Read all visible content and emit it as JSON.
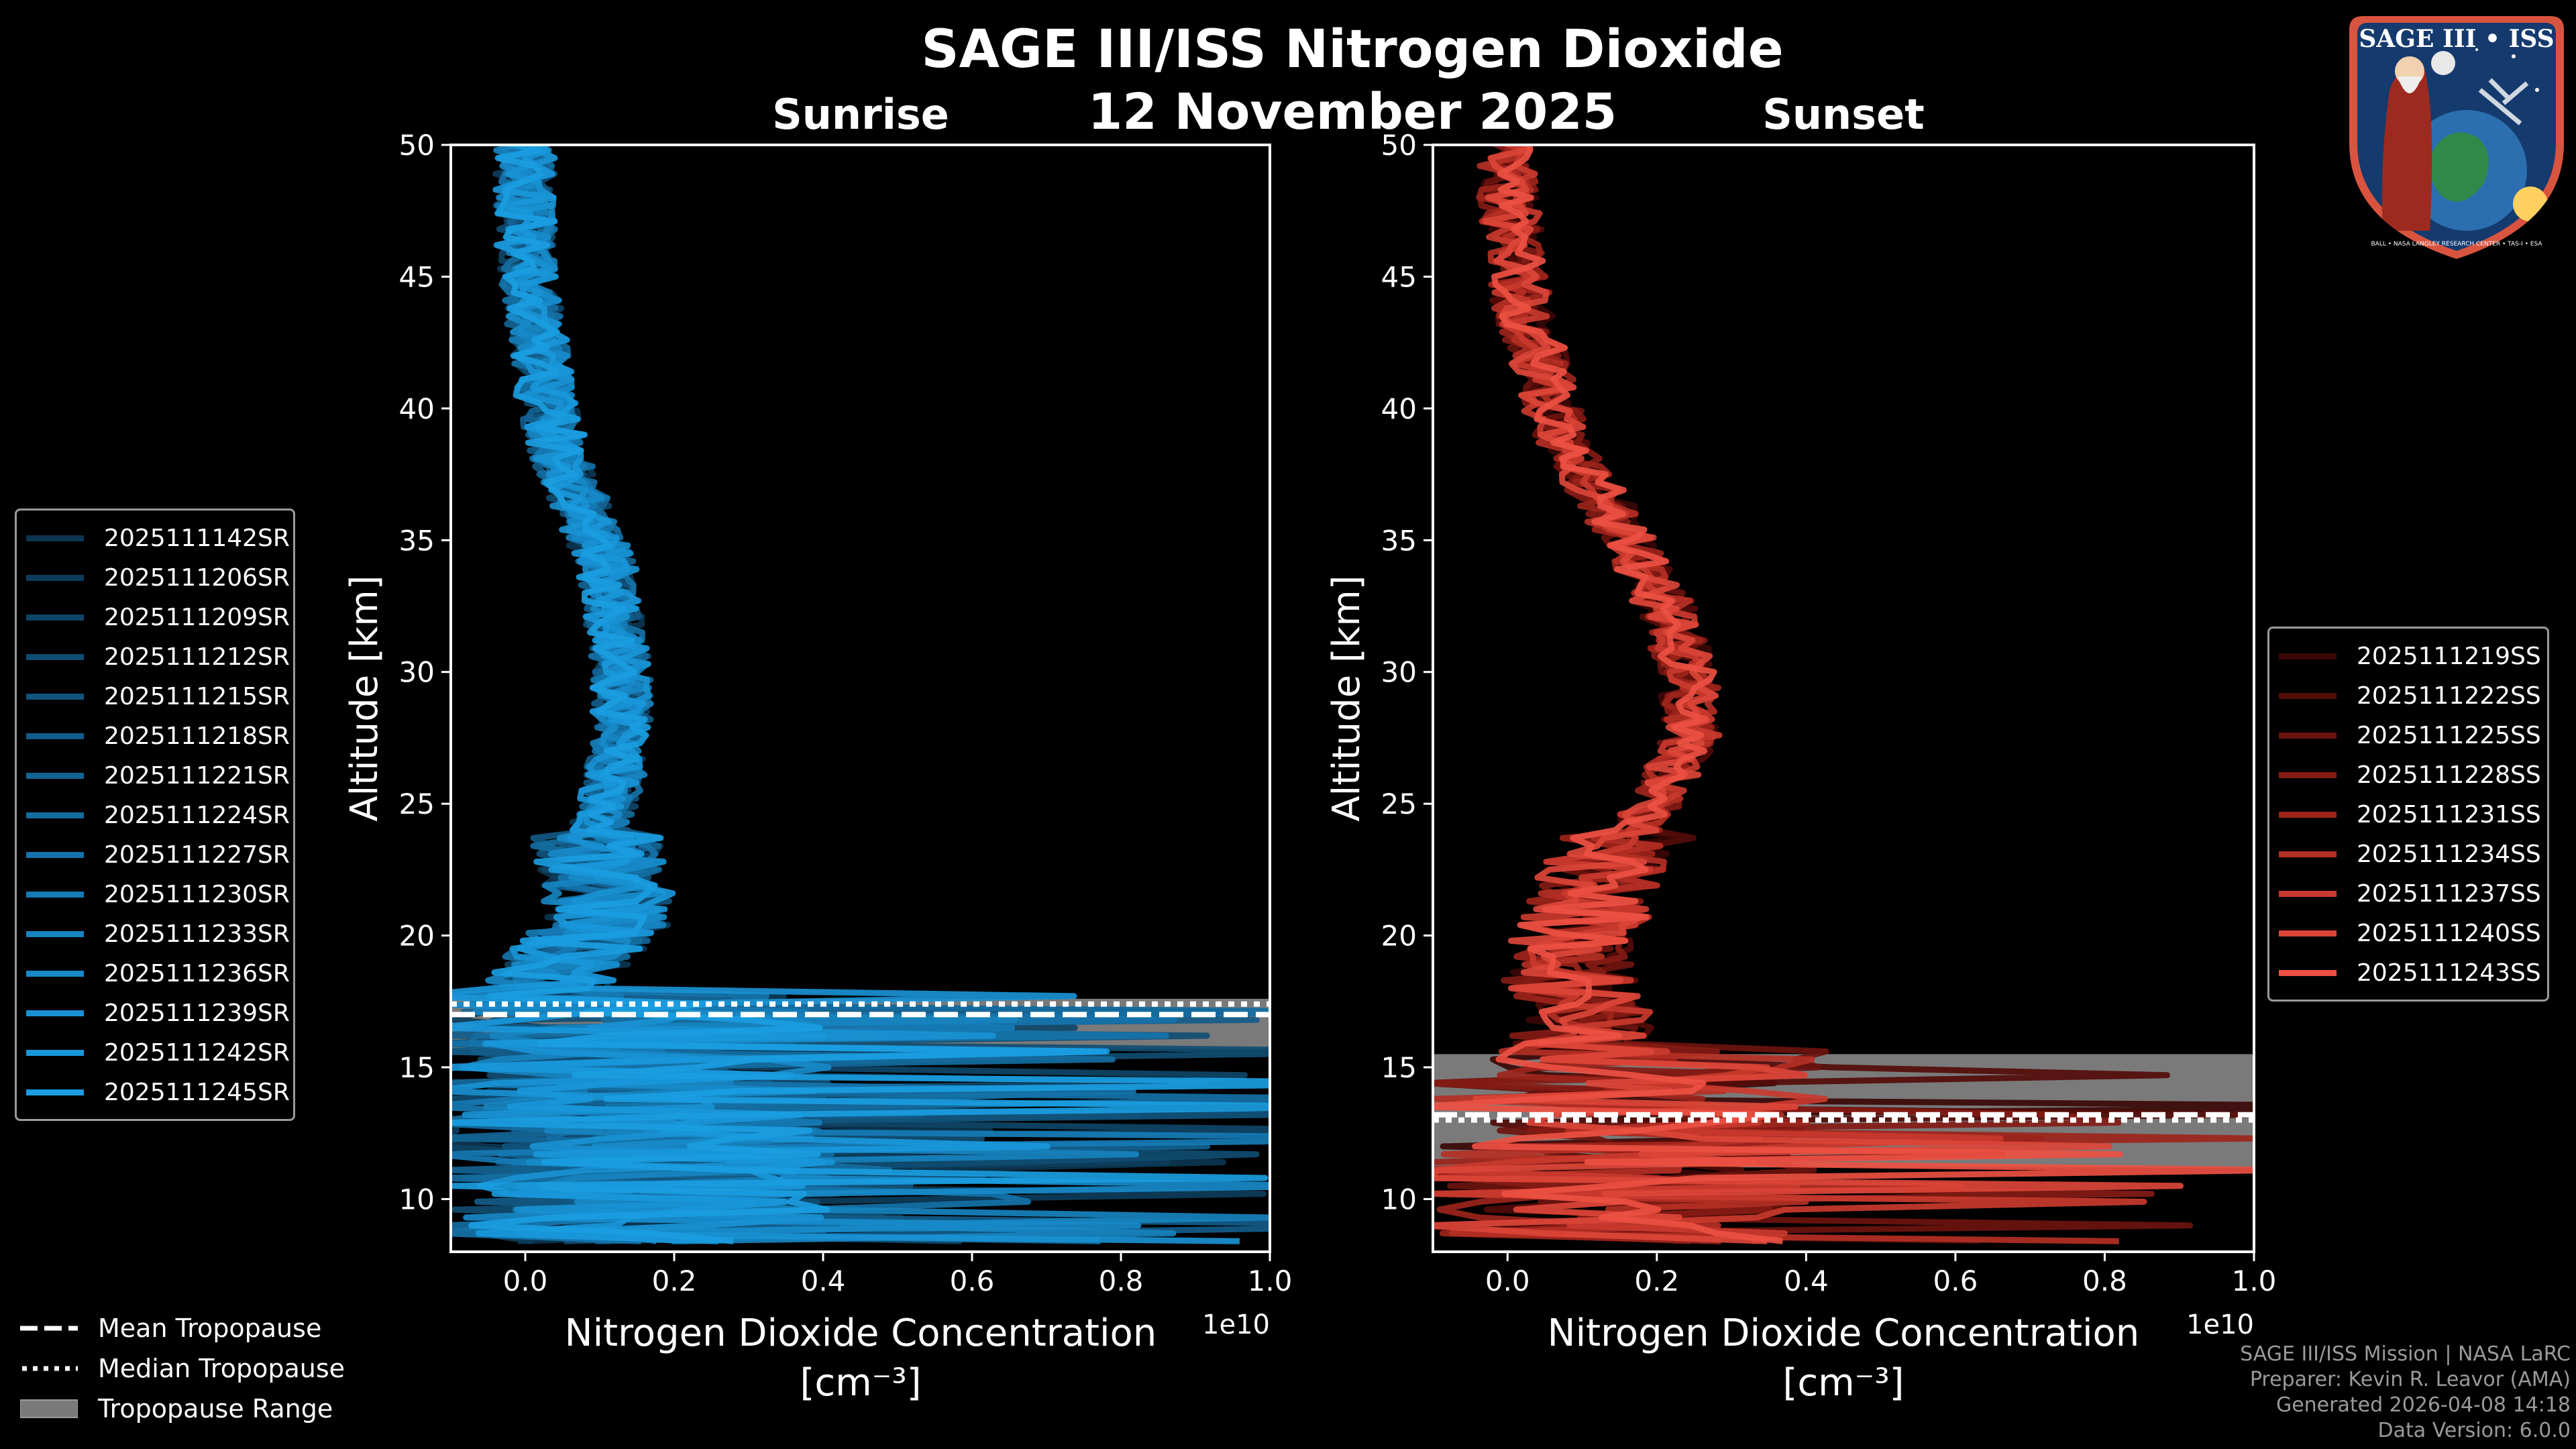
{
  "title": "SAGE III/ISS Nitrogen Dioxide",
  "date": "12 November 2025",
  "chart_data": [
    {
      "type": "line",
      "subtitle": "Sunrise",
      "xlabel": "Nitrogen Dioxide Concentration",
      "xunit": "[cm⁻³]",
      "ylabel": "Altitude [km]",
      "xlim": [
        -0.1,
        1.0
      ],
      "ylim": [
        8,
        50
      ],
      "x_offset_label": "1e10",
      "x_ticks": [
        0.0,
        0.2,
        0.4,
        0.6,
        0.8,
        1.0
      ],
      "x_tick_labels": [
        "0.0",
        "0.2",
        "0.4",
        "0.6",
        "0.8",
        "1.0"
      ],
      "y_ticks": [
        10,
        15,
        20,
        25,
        30,
        35,
        40,
        45,
        50
      ],
      "y_tick_labels": [
        "10",
        "15",
        "20",
        "25",
        "30",
        "35",
        "40",
        "45",
        "50"
      ],
      "mean_profile": {
        "altitude": [
          8.5,
          10,
          12,
          14,
          16,
          17,
          18,
          19,
          20,
          21,
          22,
          24,
          26,
          28,
          30,
          32,
          34,
          36,
          38,
          40,
          42,
          44,
          46,
          48,
          50
        ],
        "value": [
          0.05,
          0.08,
          0.05,
          0.06,
          0.05,
          0.04,
          0.03,
          0.05,
          0.09,
          0.12,
          0.1,
          0.1,
          0.12,
          0.13,
          0.13,
          0.12,
          0.11,
          0.08,
          0.05,
          0.03,
          0.02,
          0.01,
          0.0,
          0.0,
          0.0
        ]
      },
      "tropopause": {
        "mean": 17.0,
        "median": 17.4,
        "min": 15.7,
        "max": 17.6
      },
      "series": [
        {
          "name": "2025111142SR",
          "color": "#0c3650"
        },
        {
          "name": "2025111206SR",
          "color": "#0d3d5b"
        },
        {
          "name": "2025111209SR",
          "color": "#0f4567"
        },
        {
          "name": "2025111212SR",
          "color": "#104d72"
        },
        {
          "name": "2025111215SR",
          "color": "#11547d"
        },
        {
          "name": "2025111218SR",
          "color": "#125c89"
        },
        {
          "name": "2025111221SR",
          "color": "#136494"
        },
        {
          "name": "2025111224SR",
          "color": "#146c9f"
        },
        {
          "name": "2025111227SR",
          "color": "#1573aa"
        },
        {
          "name": "2025111230SR",
          "color": "#167bb5"
        },
        {
          "name": "2025111233SR",
          "color": "#1783bf"
        },
        {
          "name": "2025111236SR",
          "color": "#188ac9"
        },
        {
          "name": "2025111239SR",
          "color": "#1991d3"
        },
        {
          "name": "2025111242SR",
          "color": "#1997da"
        },
        {
          "name": "2025111245SR",
          "color": "#1a9de1"
        }
      ]
    },
    {
      "type": "line",
      "subtitle": "Sunset",
      "xlabel": "Nitrogen Dioxide Concentration",
      "xunit": "[cm⁻³]",
      "ylabel": "Altitude [km]",
      "xlim": [
        -0.1,
        1.0
      ],
      "ylim": [
        8,
        50
      ],
      "x_offset_label": "1e10",
      "x_ticks": [
        0.0,
        0.2,
        0.4,
        0.6,
        0.8,
        1.0
      ],
      "x_tick_labels": [
        "0.0",
        "0.2",
        "0.4",
        "0.6",
        "0.8",
        "1.0"
      ],
      "y_ticks": [
        10,
        15,
        20,
        25,
        30,
        35,
        40,
        45,
        50
      ],
      "y_tick_labels": [
        "10",
        "15",
        "20",
        "25",
        "30",
        "35",
        "40",
        "45",
        "50"
      ],
      "mean_profile": {
        "altitude": [
          8.5,
          10,
          12,
          14,
          16,
          17,
          18,
          20,
          22,
          24,
          26,
          28,
          30,
          32,
          34,
          36,
          38,
          40,
          42,
          44,
          46,
          48,
          50
        ],
        "value": [
          0.05,
          0.07,
          0.05,
          0.07,
          0.09,
          0.12,
          0.08,
          0.09,
          0.12,
          0.17,
          0.22,
          0.25,
          0.24,
          0.22,
          0.18,
          0.14,
          0.09,
          0.06,
          0.04,
          0.02,
          0.01,
          0.0,
          0.0
        ]
      },
      "tropopause": {
        "mean": 13.2,
        "median": 13.0,
        "min": 11.2,
        "max": 15.5
      },
      "series": [
        {
          "name": "2025111219SS",
          "color": "#3a0806"
        },
        {
          "name": "2025111222SS",
          "color": "#520c09"
        },
        {
          "name": "2025111225SS",
          "color": "#6b130e"
        },
        {
          "name": "2025111228SS",
          "color": "#841b15"
        },
        {
          "name": "2025111231SS",
          "color": "#9c241b"
        },
        {
          "name": "2025111234SS",
          "color": "#b42f24"
        },
        {
          "name": "2025111237SS",
          "color": "#c93a2e"
        },
        {
          "name": "2025111240SS",
          "color": "#db4538"
        },
        {
          "name": "2025111243SS",
          "color": "#ec5042"
        }
      ]
    }
  ],
  "tropopause_legend": [
    {
      "label": "Mean Tropopause",
      "style": "dashed"
    },
    {
      "label": "Median Tropopause",
      "style": "dotted"
    },
    {
      "label": "Tropopause Range",
      "style": "fill"
    }
  ],
  "logo": {
    "top_text": "SAGE III • ISS",
    "ring_text": "BALL • NASA LANGLEY RESEARCH CENTER • TAS-I • ESA"
  },
  "footer": [
    "SAGE III/ISS Mission | NASA LaRC",
    "Preparer: Kevin R. Leavor (AMA)",
    "Generated 2026-04-08 14:18",
    "Data Version: 6.0.0"
  ],
  "colors": {
    "background": "#000000",
    "axes": "#ffffff",
    "tropopause_range": "#7a7a7a",
    "sunrise": "#1a9de1",
    "sunset": "#ec5042"
  }
}
